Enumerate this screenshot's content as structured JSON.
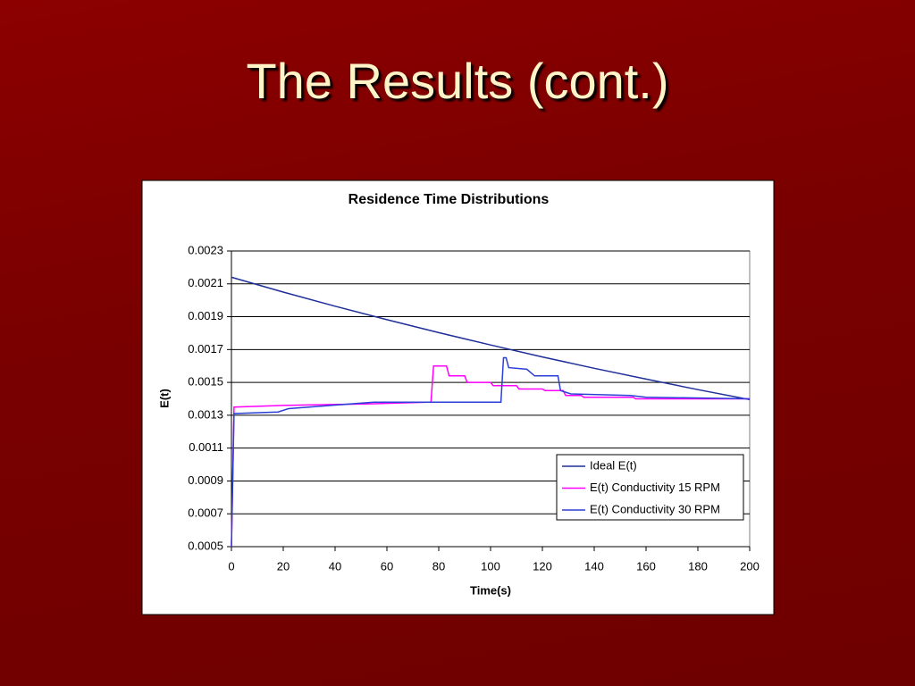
{
  "slide": {
    "title": "The Results (cont.)"
  },
  "chart_data": {
    "type": "line",
    "title": "Residence Time Distributions",
    "x_label": "Time(s)",
    "y_label": "E(t)",
    "xlim": [
      0,
      200
    ],
    "xticks": [
      0,
      20,
      40,
      60,
      80,
      100,
      120,
      140,
      160,
      180,
      200
    ],
    "ylim": [
      0.0005,
      0.0023
    ],
    "yticks": [
      0.0005,
      0.0007,
      0.0009,
      0.0011,
      0.0013,
      0.0015,
      0.0017,
      0.0019,
      0.0021,
      0.0023
    ],
    "grid": true,
    "legend": "lower right",
    "series": [
      {
        "name": "Ideal E(t)",
        "color": "#1f2f9a",
        "x": [
          0,
          20,
          40,
          60,
          80,
          100,
          120,
          140,
          160,
          180,
          200
        ],
        "values": [
          0.00214,
          0.00205,
          0.001964,
          0.001882,
          0.001803,
          0.001728,
          0.001655,
          0.001586,
          0.00152,
          0.001456,
          0.001395
        ]
      },
      {
        "name": "E(t) Conductivity 15 RPM",
        "color": "#ff00ff",
        "x": [
          0,
          1,
          20,
          55,
          77,
          78,
          83,
          84,
          90,
          91,
          100,
          101,
          110,
          111,
          120,
          121,
          128,
          129,
          135,
          136,
          155,
          156,
          200
        ],
        "values": [
          0.0005,
          0.00135,
          0.00136,
          0.00137,
          0.00138,
          0.0016,
          0.0016,
          0.00154,
          0.00154,
          0.0015,
          0.0015,
          0.00148,
          0.00148,
          0.00146,
          0.00146,
          0.00145,
          0.00145,
          0.00142,
          0.00142,
          0.00141,
          0.00141,
          0.0014,
          0.0014
        ]
      },
      {
        "name": "E(t) Conductivity 30 RPM",
        "color": "#2b3fd6",
        "x": [
          0,
          1,
          18,
          22,
          55,
          104,
          105,
          106,
          107,
          114,
          117,
          126,
          127,
          131,
          154,
          160,
          200
        ],
        "values": [
          0.0005,
          0.00131,
          0.00132,
          0.00134,
          0.00138,
          0.00138,
          0.00165,
          0.00165,
          0.00159,
          0.00158,
          0.00154,
          0.00154,
          0.00145,
          0.00143,
          0.00142,
          0.00141,
          0.0014
        ]
      }
    ]
  }
}
